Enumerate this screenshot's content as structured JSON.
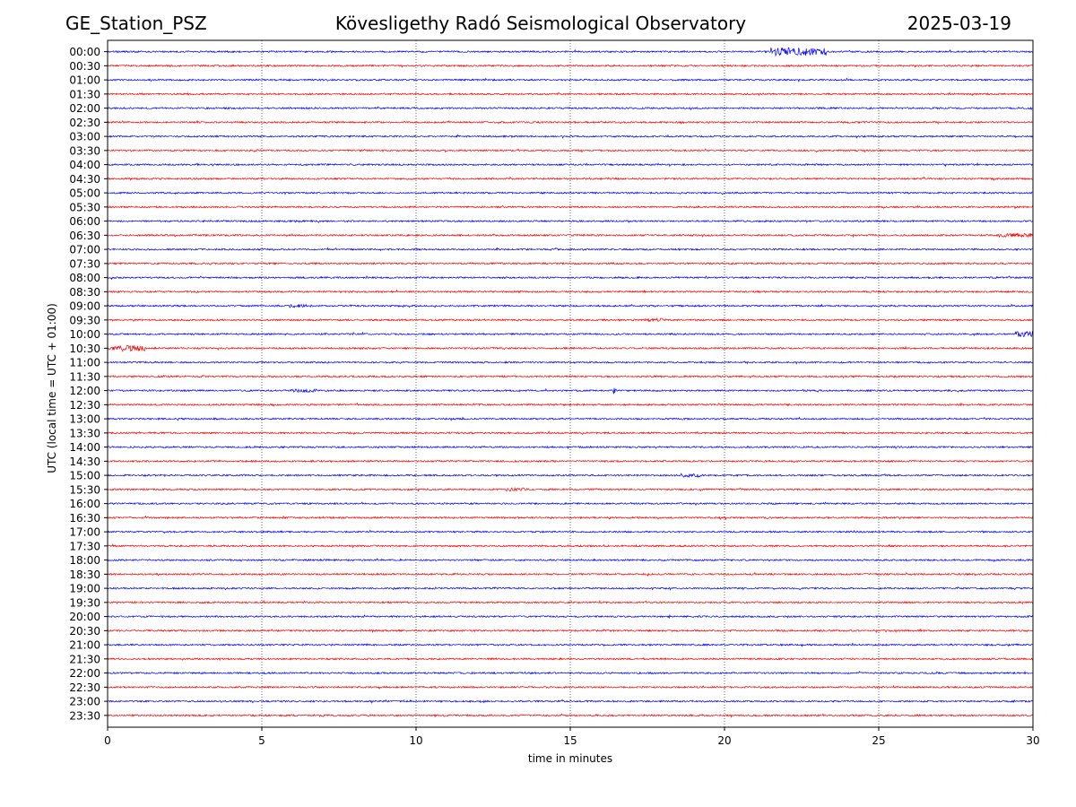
{
  "header": {
    "station": "GE_Station_PSZ",
    "title": "Kövesligethy Radó Seismological Observatory",
    "date": "2025-03-19"
  },
  "chart_data": {
    "type": "line",
    "title": "Kövesligethy Radó Seismological Observatory",
    "xlabel": "time in minutes",
    "ylabel": "UTC (local time = UTC + 01:00)",
    "xlim": [
      0,
      30
    ],
    "xticks": [
      "0",
      "5",
      "10",
      "15",
      "20",
      "25",
      "30"
    ],
    "xtick_values": [
      0,
      5,
      10,
      15,
      20,
      25,
      30
    ],
    "grid": "vertical dotted at x ticks",
    "row_labels": [
      "00:00",
      "00:30",
      "01:00",
      "01:30",
      "02:00",
      "02:30",
      "03:00",
      "03:30",
      "04:00",
      "04:30",
      "05:00",
      "05:30",
      "06:00",
      "06:30",
      "07:00",
      "07:30",
      "08:00",
      "08:30",
      "09:00",
      "09:30",
      "10:00",
      "10:30",
      "11:00",
      "11:30",
      "12:00",
      "12:30",
      "13:00",
      "13:30",
      "14:00",
      "14:30",
      "15:00",
      "15:30",
      "16:00",
      "16:30",
      "17:00",
      "17:30",
      "18:00",
      "18:30",
      "19:00",
      "19:30",
      "20:00",
      "20:30",
      "21:00",
      "21:30",
      "22:00",
      "22:30",
      "23:00",
      "23:30"
    ],
    "trace_colors": [
      "#0000ff",
      "#ff0000"
    ],
    "events": [
      {
        "row": "00:00",
        "start_min": 21.5,
        "end_min": 23.3,
        "amplitude": 4.5
      },
      {
        "row": "09:00",
        "start_min": 5.9,
        "end_min": 6.6,
        "amplitude": 2
      },
      {
        "row": "09:30",
        "start_min": 17.4,
        "end_min": 18.0,
        "amplitude": 2
      },
      {
        "row": "10:00",
        "start_min": 29.4,
        "end_min": 30.0,
        "amplitude": 3
      },
      {
        "row": "10:30",
        "start_min": 0.0,
        "end_min": 1.2,
        "amplitude": 3.5
      },
      {
        "row": "12:00",
        "start_min": 5.9,
        "end_min": 6.8,
        "amplitude": 2
      },
      {
        "row": "12:00",
        "start_min": 16.4,
        "end_min": 16.5,
        "amplitude": 4
      },
      {
        "row": "15:00",
        "start_min": 18.6,
        "end_min": 19.3,
        "amplitude": 2
      },
      {
        "row": "15:30",
        "start_min": 12.9,
        "end_min": 13.6,
        "amplitude": 2
      },
      {
        "row": "06:30",
        "start_min": 28.8,
        "end_min": 30.0,
        "amplitude": 2
      }
    ]
  }
}
